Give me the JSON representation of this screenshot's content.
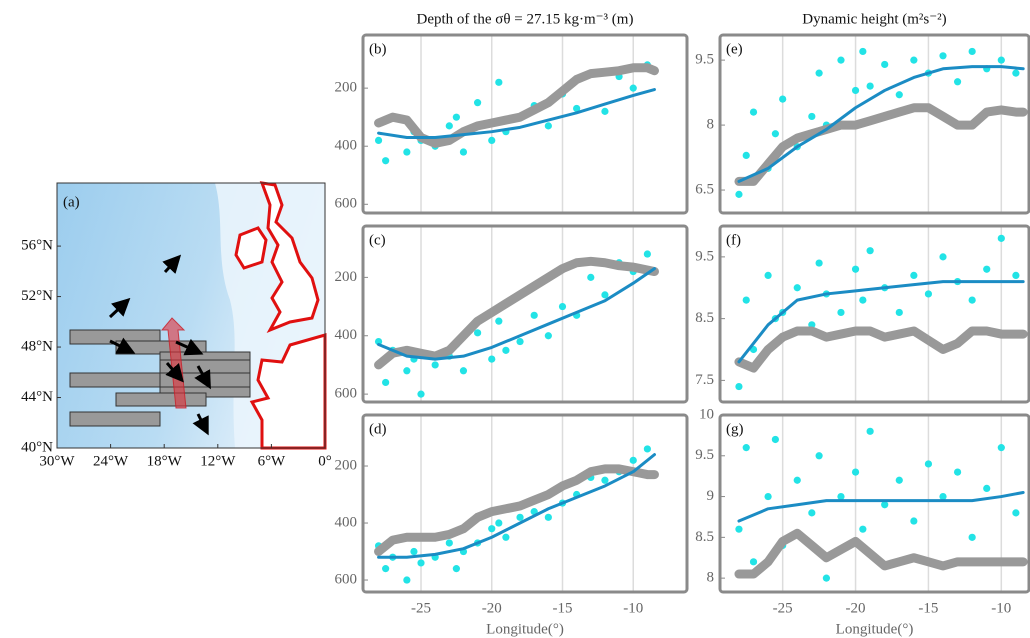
{
  "chart_data": [
    {
      "type": "map",
      "label": "(a)",
      "xlim": [
        -30,
        0
      ],
      "xticks": [
        {
          "value": -30,
          "label": "30°W"
        },
        {
          "value": -24,
          "label": "24°W"
        },
        {
          "value": -18,
          "label": "18°W"
        },
        {
          "value": -12,
          "label": "12°W"
        },
        {
          "value": -6,
          "label": "6°W"
        },
        {
          "value": 0,
          "label": "0°"
        }
      ],
      "ylim": [
        40,
        61
      ],
      "yticks": [
        {
          "value": 40,
          "label": "40°N"
        },
        {
          "value": 44,
          "label": "44°N"
        },
        {
          "value": 48,
          "label": "48°N"
        },
        {
          "value": 52,
          "label": "52°N"
        },
        {
          "value": 56,
          "label": "56°N"
        }
      ]
    },
    {
      "type": "panel",
      "label": "(b)",
      "title": "Depth of the σθ = 27.15 kg·m⁻³ (m)",
      "xlim": [
        -29.1,
        -6.2
      ],
      "xticks": [
        -25,
        -20,
        -15,
        -10
      ],
      "show_xtick_labels": false,
      "ylim": [
        630,
        17
      ],
      "yticks": [
        200,
        400,
        600
      ],
      "series": [
        {
          "type": "scatter",
          "color": "#22e3e6",
          "x": [
            -28,
            -27.5,
            -27,
            -26,
            -25.5,
            -25,
            -24,
            -23,
            -22.5,
            -22,
            -21,
            -20,
            -19.5,
            -19,
            -18,
            -17,
            -16,
            -15,
            -14,
            -13,
            -12,
            -11,
            -10,
            -9
          ],
          "values": [
            380,
            450,
            300,
            420,
            350,
            380,
            400,
            330,
            300,
            420,
            250,
            380,
            180,
            350,
            300,
            260,
            330,
            220,
            270,
            150,
            280,
            160,
            200,
            120
          ]
        },
        {
          "type": "line",
          "color": "#999999",
          "width": 9,
          "x": [
            -28,
            -27,
            -26,
            -25,
            -24,
            -23,
            -22,
            -21,
            -20,
            -19,
            -18,
            -17,
            -16,
            -15,
            -14,
            -13,
            -12,
            -11,
            -10,
            -9,
            -8.5
          ],
          "values": [
            320,
            300,
            310,
            370,
            390,
            380,
            350,
            330,
            320,
            310,
            300,
            275,
            250,
            210,
            170,
            150,
            145,
            140,
            130,
            130,
            140
          ]
        },
        {
          "type": "line",
          "color": "#1b8cc4",
          "width": 3,
          "x": [
            -28,
            -26,
            -24,
            -22,
            -20,
            -18,
            -16,
            -14,
            -12,
            -10,
            -8.5
          ],
          "values": [
            355,
            370,
            370,
            360,
            350,
            335,
            310,
            285,
            255,
            225,
            205
          ]
        }
      ]
    },
    {
      "type": "panel",
      "label": "(c)",
      "xlim": [
        -29.1,
        -6.2
      ],
      "xticks": [
        -25,
        -20,
        -15,
        -10
      ],
      "show_xtick_labels": false,
      "ylim": [
        627,
        24
      ],
      "yticks": [
        200,
        400,
        600
      ],
      "series": [
        {
          "type": "scatter",
          "color": "#22e3e6",
          "x": [
            -28,
            -27.5,
            -27,
            -26,
            -25.5,
            -25,
            -24,
            -23,
            -22.5,
            -22,
            -21,
            -20,
            -19.5,
            -19,
            -18,
            -17,
            -16,
            -15,
            -14,
            -13,
            -12,
            -11,
            -10,
            -9
          ],
          "values": [
            420,
            560,
            450,
            520,
            480,
            600,
            500,
            470,
            430,
            520,
            390,
            480,
            350,
            450,
            420,
            330,
            400,
            300,
            330,
            200,
            260,
            150,
            180,
            120
          ]
        },
        {
          "type": "line",
          "color": "#999999",
          "width": 9,
          "x": [
            -28,
            -27,
            -26,
            -25,
            -24,
            -23,
            -22,
            -21,
            -20,
            -19,
            -18,
            -17,
            -16,
            -15,
            -14,
            -13,
            -12,
            -11,
            -10,
            -9,
            -8.5
          ],
          "values": [
            500,
            460,
            450,
            460,
            470,
            450,
            400,
            350,
            320,
            290,
            260,
            230,
            200,
            170,
            150,
            145,
            150,
            160,
            165,
            175,
            180
          ]
        },
        {
          "type": "line",
          "color": "#1b8cc4",
          "width": 3,
          "x": [
            -28,
            -26,
            -24,
            -22,
            -20,
            -18,
            -16,
            -14,
            -12,
            -10,
            -8.5
          ],
          "values": [
            430,
            470,
            480,
            470,
            440,
            400,
            360,
            320,
            280,
            220,
            170
          ]
        }
      ]
    },
    {
      "type": "panel",
      "label": "(d)",
      "xlabel": "Longitude(°)",
      "xlim": [
        -29.1,
        -6.2
      ],
      "xticks": [
        -25,
        -20,
        -15,
        -10
      ],
      "show_xtick_labels": true,
      "ylim": [
        642,
        21
      ],
      "yticks": [
        200,
        400,
        600
      ],
      "series": [
        {
          "type": "scatter",
          "color": "#22e3e6",
          "x": [
            -28,
            -27.5,
            -27,
            -26,
            -25.5,
            -25,
            -24,
            -23,
            -22.5,
            -22,
            -21,
            -20,
            -19.5,
            -19,
            -18,
            -17,
            -16,
            -15,
            -14,
            -13,
            -12,
            -11,
            -10,
            -9
          ],
          "values": [
            480,
            560,
            520,
            600,
            500,
            540,
            520,
            470,
            560,
            500,
            470,
            420,
            400,
            450,
            380,
            360,
            380,
            330,
            300,
            240,
            250,
            220,
            180,
            140
          ]
        },
        {
          "type": "line",
          "color": "#999999",
          "width": 9,
          "x": [
            -28,
            -27,
            -26,
            -25,
            -24,
            -23,
            -22,
            -21,
            -20,
            -19,
            -18,
            -17,
            -16,
            -15,
            -14,
            -13,
            -12,
            -11,
            -10,
            -9,
            -8.5
          ],
          "values": [
            500,
            460,
            450,
            450,
            450,
            440,
            420,
            380,
            360,
            350,
            340,
            320,
            300,
            270,
            250,
            220,
            210,
            210,
            220,
            230,
            230
          ]
        },
        {
          "type": "line",
          "color": "#1b8cc4",
          "width": 3,
          "x": [
            -28,
            -26,
            -24,
            -22,
            -20,
            -18,
            -16,
            -14,
            -12,
            -10,
            -8.5
          ],
          "values": [
            520,
            520,
            510,
            490,
            450,
            400,
            350,
            310,
            270,
            220,
            160
          ]
        }
      ]
    },
    {
      "type": "panel",
      "label": "(e)",
      "title": "Dynamic height (m²s⁻²)",
      "xlim": [
        -29.3,
        -8.1
      ],
      "xticks": [
        -25,
        -20,
        -15,
        -10
      ],
      "show_xtick_labels": false,
      "ylim": [
        5.97,
        10.08
      ],
      "yticks": [
        6.5,
        8,
        9.5
      ],
      "series": [
        {
          "type": "scatter",
          "color": "#22e3e6",
          "x": [
            -28,
            -27.5,
            -27,
            -26,
            -25.5,
            -25,
            -24,
            -23,
            -22.5,
            -22,
            -21,
            -20,
            -19.5,
            -19,
            -18,
            -17,
            -16,
            -15,
            -14,
            -13,
            -12,
            -11,
            -10,
            -9
          ],
          "values": [
            6.4,
            7.3,
            8.3,
            7.0,
            7.8,
            8.6,
            7.5,
            8.2,
            9.2,
            8.0,
            9.5,
            8.8,
            9.7,
            8.9,
            9.4,
            8.7,
            9.5,
            9.2,
            9.6,
            9.0,
            9.7,
            9.3,
            9.5,
            9.2
          ]
        },
        {
          "type": "line",
          "color": "#999999",
          "width": 9,
          "x": [
            -28,
            -27,
            -26,
            -25,
            -24,
            -23,
            -22,
            -21,
            -20,
            -19,
            -18,
            -17,
            -16,
            -15,
            -14,
            -13,
            -12,
            -11,
            -10,
            -9,
            -8.5
          ],
          "values": [
            6.7,
            6.7,
            7.1,
            7.5,
            7.7,
            7.8,
            7.9,
            8.0,
            8.0,
            8.1,
            8.2,
            8.3,
            8.4,
            8.4,
            8.2,
            8.0,
            8.0,
            8.3,
            8.35,
            8.3,
            8.3
          ]
        },
        {
          "type": "line",
          "color": "#1b8cc4",
          "width": 3,
          "x": [
            -28,
            -26,
            -24,
            -22,
            -20,
            -18,
            -16,
            -14,
            -12,
            -10,
            -8.5
          ],
          "values": [
            6.7,
            7.0,
            7.5,
            7.9,
            8.4,
            8.8,
            9.1,
            9.3,
            9.35,
            9.35,
            9.3
          ]
        }
      ]
    },
    {
      "type": "panel",
      "label": "(f)",
      "xlim": [
        -29.3,
        -8.1
      ],
      "xticks": [
        -25,
        -20,
        -15,
        -10
      ],
      "show_xtick_labels": false,
      "ylim": [
        7.15,
        10
      ],
      "yticks": [
        7.5,
        8.5,
        9.5
      ],
      "series": [
        {
          "type": "scatter",
          "color": "#22e3e6",
          "x": [
            -28,
            -27.5,
            -27,
            -26,
            -25.5,
            -25,
            -24,
            -23,
            -22.5,
            -22,
            -21,
            -20,
            -19.5,
            -19,
            -18,
            -17,
            -16,
            -15,
            -14,
            -13,
            -12,
            -11,
            -10,
            -9
          ],
          "values": [
            7.4,
            8.8,
            8.0,
            9.2,
            8.5,
            8.6,
            9.0,
            8.4,
            9.4,
            8.9,
            8.6,
            9.3,
            8.8,
            9.6,
            9.0,
            8.6,
            9.2,
            8.9,
            9.5,
            9.1,
            8.8,
            9.3,
            9.8,
            9.2
          ]
        },
        {
          "type": "line",
          "color": "#999999",
          "width": 9,
          "x": [
            -28,
            -27,
            -26,
            -25,
            -24,
            -23,
            -22,
            -21,
            -20,
            -19,
            -18,
            -17,
            -16,
            -15,
            -14,
            -13,
            -12,
            -11,
            -10,
            -9,
            -8.5
          ],
          "values": [
            7.8,
            7.7,
            8.0,
            8.2,
            8.3,
            8.3,
            8.2,
            8.25,
            8.3,
            8.3,
            8.2,
            8.25,
            8.3,
            8.15,
            8.0,
            8.1,
            8.3,
            8.3,
            8.25,
            8.25,
            8.25
          ]
        },
        {
          "type": "line",
          "color": "#1b8cc4",
          "width": 3,
          "x": [
            -28,
            -26,
            -24,
            -22,
            -20,
            -18,
            -16,
            -14,
            -12,
            -10,
            -8.5
          ],
          "values": [
            7.8,
            8.4,
            8.8,
            8.9,
            8.95,
            9.0,
            9.05,
            9.1,
            9.1,
            9.1,
            9.1
          ]
        }
      ]
    },
    {
      "type": "panel",
      "label": "(g)",
      "xlabel": "Longitude(°)",
      "xlim": [
        -29.3,
        -8.1
      ],
      "xticks": [
        -25,
        -20,
        -15,
        -10
      ],
      "show_xtick_labels": true,
      "ylim": [
        7.83,
        10
      ],
      "yticks": [
        8,
        8.5,
        9,
        9.5,
        10
      ],
      "series": [
        {
          "type": "scatter",
          "color": "#22e3e6",
          "x": [
            -28,
            -27.5,
            -27,
            -26,
            -25.5,
            -25,
            -24,
            -23,
            -22.5,
            -22,
            -21,
            -20,
            -19.5,
            -19,
            -18,
            -17,
            -16,
            -15,
            -14,
            -13,
            -12,
            -11,
            -10,
            -9
          ],
          "values": [
            8.6,
            9.6,
            8.2,
            9.0,
            9.7,
            8.4,
            9.2,
            8.8,
            9.5,
            8.0,
            9.0,
            9.3,
            8.6,
            9.8,
            8.9,
            9.2,
            8.7,
            9.4,
            9.0,
            9.3,
            8.5,
            9.1,
            9.6,
            8.8
          ]
        },
        {
          "type": "line",
          "color": "#999999",
          "width": 9,
          "x": [
            -28,
            -27,
            -26,
            -25,
            -24,
            -23,
            -22,
            -21,
            -20,
            -19,
            -18,
            -17,
            -16,
            -15,
            -14,
            -13,
            -12,
            -11,
            -10,
            -9,
            -8.5
          ],
          "values": [
            8.05,
            8.05,
            8.2,
            8.45,
            8.55,
            8.4,
            8.25,
            8.35,
            8.45,
            8.3,
            8.15,
            8.2,
            8.25,
            8.2,
            8.15,
            8.2,
            8.2,
            8.2,
            8.2,
            8.2,
            8.2
          ]
        },
        {
          "type": "line",
          "color": "#1b8cc4",
          "width": 3,
          "x": [
            -28,
            -26,
            -24,
            -22,
            -20,
            -18,
            -16,
            -14,
            -12,
            -10,
            -8.5
          ],
          "values": [
            8.7,
            8.85,
            8.9,
            8.95,
            8.95,
            8.95,
            8.95,
            8.95,
            8.95,
            9.0,
            9.05
          ]
        }
      ]
    }
  ]
}
